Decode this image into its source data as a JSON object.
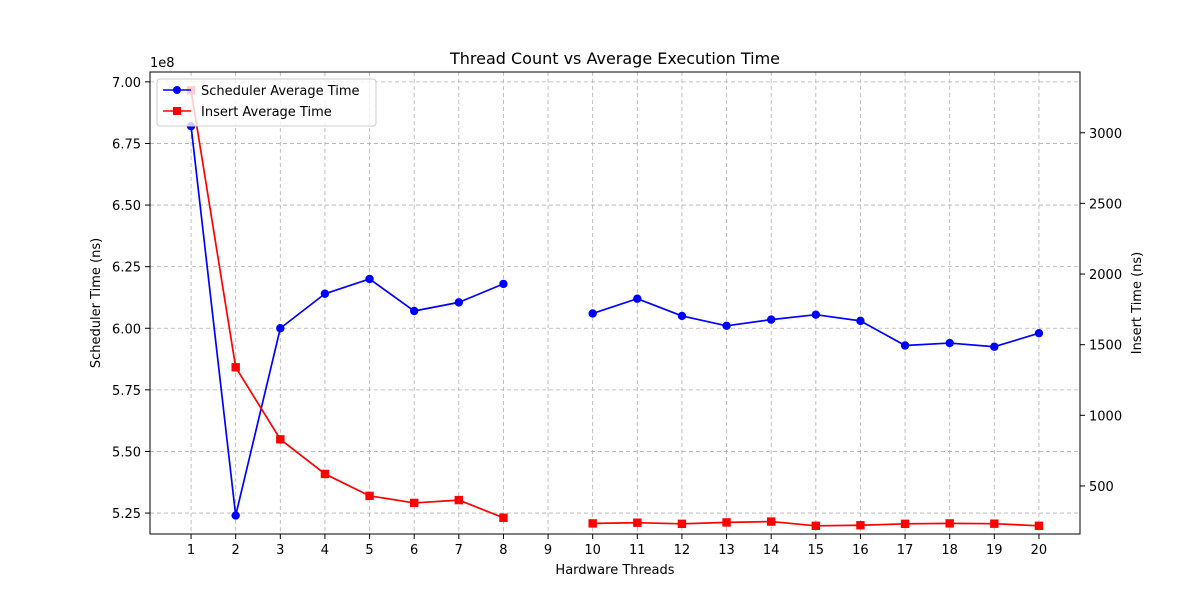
{
  "chart_data": {
    "type": "line",
    "title": "Thread Count vs Average Execution Time",
    "xlabel": "Hardware Threads",
    "ylabel_left": "Scheduler Time (ns)",
    "ylabel_right": "Insert Time (ns)",
    "left_offset_label": "1e8",
    "x_ticks": [
      1,
      2,
      3,
      4,
      5,
      6,
      7,
      8,
      9,
      10,
      11,
      12,
      13,
      14,
      15,
      16,
      17,
      18,
      19,
      20
    ],
    "xlim": [
      0.08,
      20.92
    ],
    "ylim_left": [
      5.165,
      7.04
    ],
    "ylim_right": [
      160,
      3430
    ],
    "y_ticks_left": [
      "5.25",
      "5.50",
      "5.75",
      "6.00",
      "6.25",
      "6.50",
      "6.75",
      "7.00"
    ],
    "y_ticks_right": [
      "500",
      "1000",
      "1500",
      "2000",
      "2500",
      "3000"
    ],
    "grid": true,
    "legend_position": "upper-left",
    "series": [
      {
        "name": "Scheduler Average Time",
        "axis": "left",
        "color": "#0000ff",
        "marker": "circle",
        "points": [
          {
            "x": 1,
            "y": 6.82
          },
          {
            "x": 2,
            "y": 5.24
          },
          {
            "x": 3,
            "y": 6.0
          },
          {
            "x": 4,
            "y": 6.14
          },
          {
            "x": 5,
            "y": 6.2
          },
          {
            "x": 6,
            "y": 6.07
          },
          {
            "x": 7,
            "y": 6.105
          },
          {
            "x": 8,
            "y": 6.18
          },
          {
            "x": 10,
            "y": 6.06
          },
          {
            "x": 11,
            "y": 6.12
          },
          {
            "x": 12,
            "y": 6.05
          },
          {
            "x": 13,
            "y": 6.01
          },
          {
            "x": 14,
            "y": 6.035
          },
          {
            "x": 15,
            "y": 6.055
          },
          {
            "x": 16,
            "y": 6.03
          },
          {
            "x": 17,
            "y": 5.93
          },
          {
            "x": 18,
            "y": 5.94
          },
          {
            "x": 19,
            "y": 5.925
          },
          {
            "x": 20,
            "y": 5.98
          }
        ]
      },
      {
        "name": "Insert Average Time",
        "axis": "right",
        "color": "#ff0000",
        "marker": "square",
        "points": [
          {
            "x": 1,
            "y": 3300
          },
          {
            "x": 2,
            "y": 1340
          },
          {
            "x": 3,
            "y": 830
          },
          {
            "x": 4,
            "y": 585
          },
          {
            "x": 5,
            "y": 430
          },
          {
            "x": 6,
            "y": 380
          },
          {
            "x": 7,
            "y": 400
          },
          {
            "x": 8,
            "y": 275
          },
          {
            "x": 10,
            "y": 235
          },
          {
            "x": 11,
            "y": 240
          },
          {
            "x": 12,
            "y": 232
          },
          {
            "x": 13,
            "y": 242
          },
          {
            "x": 14,
            "y": 248
          },
          {
            "x": 15,
            "y": 218
          },
          {
            "x": 16,
            "y": 222
          },
          {
            "x": 17,
            "y": 232
          },
          {
            "x": 18,
            "y": 235
          },
          {
            "x": 19,
            "y": 233
          },
          {
            "x": 20,
            "y": 218
          }
        ]
      }
    ]
  }
}
